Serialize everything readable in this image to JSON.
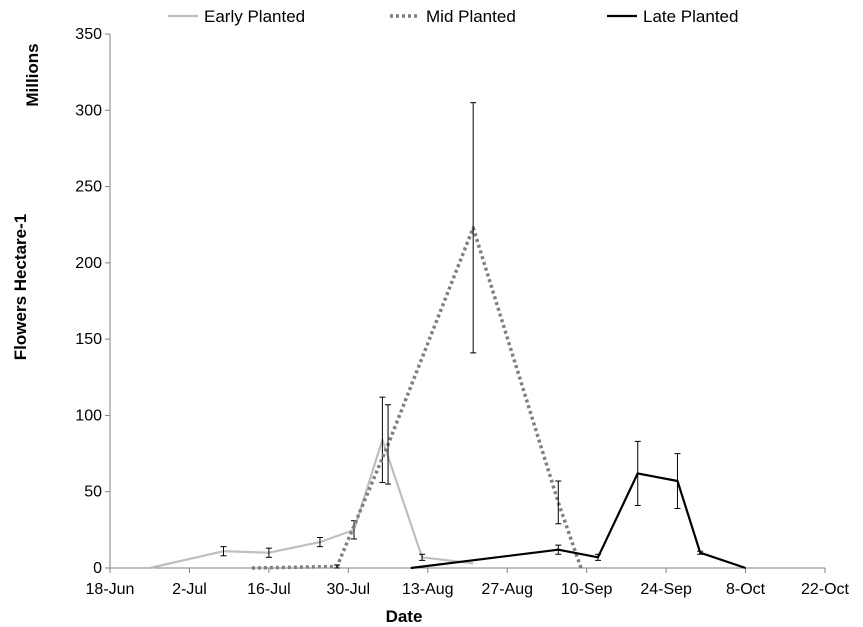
{
  "chart_data": {
    "type": "line",
    "xlabel": "Date",
    "ylabel": "Flowers Hectare-1",
    "yunit": "Millions",
    "ylim": [
      0,
      350
    ],
    "yticks": [
      0,
      50,
      100,
      150,
      200,
      250,
      300,
      350
    ],
    "xlim": [
      "2013-06-18",
      "2013-10-22"
    ],
    "xticks": [
      {
        "date": "2013-06-18",
        "label": "18-Jun"
      },
      {
        "date": "2013-07-02",
        "label": "2-Jul"
      },
      {
        "date": "2013-07-16",
        "label": "16-Jul"
      },
      {
        "date": "2013-07-30",
        "label": "30-Jul"
      },
      {
        "date": "2013-08-13",
        "label": "13-Aug"
      },
      {
        "date": "2013-08-27",
        "label": "27-Aug"
      },
      {
        "date": "2013-09-10",
        "label": "10-Sep"
      },
      {
        "date": "2013-09-24",
        "label": "24-Sep"
      },
      {
        "date": "2013-10-08",
        "label": "8-Oct"
      },
      {
        "date": "2013-10-22",
        "label": "22-Oct"
      }
    ],
    "grid": false,
    "legend_position": "top",
    "series": [
      {
        "name": "Early Planted",
        "color": "#bfbfbf",
        "dash": "solid",
        "points": [
          {
            "x": "2013-06-25",
            "y": 0
          },
          {
            "x": "2013-07-08",
            "y": 11,
            "err": 3
          },
          {
            "x": "2013-07-16",
            "y": 10,
            "err": 3
          },
          {
            "x": "2013-07-25",
            "y": 17,
            "err": 3
          },
          {
            "x": "2013-07-31",
            "y": 25,
            "err": 6
          },
          {
            "x": "2013-08-05",
            "y": 84,
            "err": 28
          },
          {
            "x": "2013-08-12",
            "y": 7,
            "err": 2
          },
          {
            "x": "2013-08-21",
            "y": 3
          }
        ]
      },
      {
        "name": "Mid Planted",
        "color": "#7f7f7f",
        "dash": "dotted",
        "points": [
          {
            "x": "2013-07-13",
            "y": 0
          },
          {
            "x": "2013-07-28",
            "y": 1,
            "err": 1
          },
          {
            "x": "2013-08-06",
            "y": 81,
            "err": 26
          },
          {
            "x": "2013-08-21",
            "y": 223,
            "err": 82
          },
          {
            "x": "2013-09-05",
            "y": 43,
            "err": 14
          },
          {
            "x": "2013-09-09",
            "y": 0
          }
        ]
      },
      {
        "name": "Late Planted",
        "color": "#000000",
        "dash": "solid",
        "points": [
          {
            "x": "2013-08-10",
            "y": 0
          },
          {
            "x": "2013-09-05",
            "y": 12,
            "err": 3
          },
          {
            "x": "2013-09-12",
            "y": 7,
            "err": 2
          },
          {
            "x": "2013-09-19",
            "y": 62,
            "err": 21
          },
          {
            "x": "2013-09-26",
            "y": 57,
            "err": 18
          },
          {
            "x": "2013-09-30",
            "y": 10,
            "err": 1
          },
          {
            "x": "2013-10-08",
            "y": 0
          }
        ]
      }
    ]
  }
}
